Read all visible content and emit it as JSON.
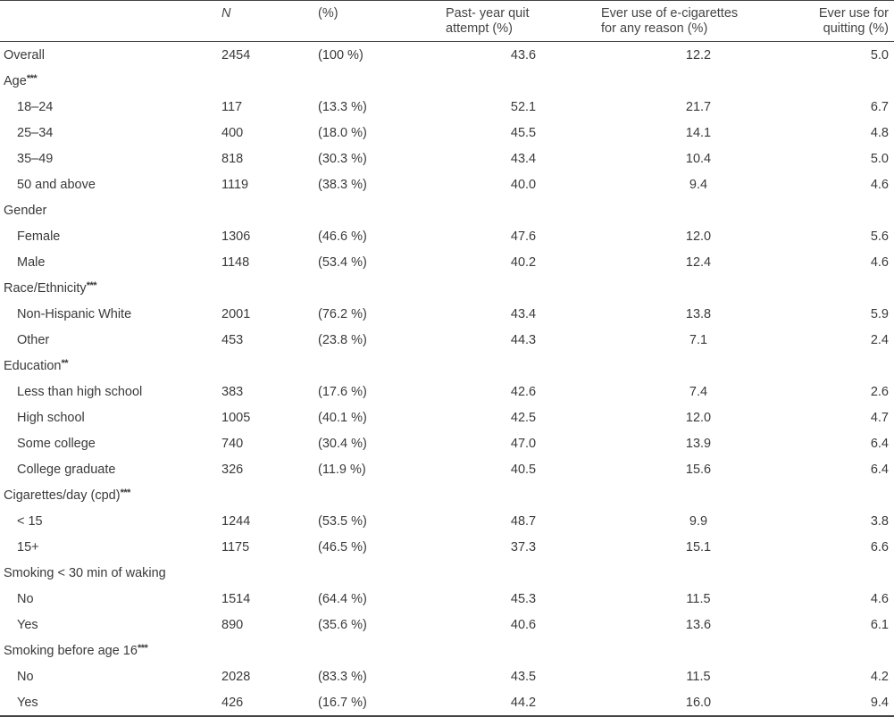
{
  "table": {
    "headers": [
      "",
      "N",
      "(%)",
      [
        "Past- year quit",
        "attempt (%)"
      ],
      [
        "Ever use of e-cigarettes",
        "for any reason (%)"
      ],
      [
        "Ever use for",
        "quitting (%)"
      ]
    ],
    "rows": [
      {
        "label": "Overall",
        "marker": "",
        "indent": false,
        "n": "2454",
        "pct": "(100 %)",
        "quit": "43.6",
        "ever": "12.2",
        "quitting": "5.0"
      },
      {
        "label": "Age",
        "marker": "***",
        "indent": false,
        "n": "",
        "pct": "",
        "quit": "",
        "ever": "",
        "quitting": ""
      },
      {
        "label": "18–24",
        "marker": "",
        "indent": true,
        "n": "117",
        "pct": "(13.3 %)",
        "quit": "52.1",
        "ever": "21.7",
        "quitting": "6.7"
      },
      {
        "label": "25–34",
        "marker": "",
        "indent": true,
        "n": "400",
        "pct": "(18.0 %)",
        "quit": "45.5",
        "ever": "14.1",
        "quitting": "4.8"
      },
      {
        "label": "35–49",
        "marker": "",
        "indent": true,
        "n": "818",
        "pct": "(30.3 %)",
        "quit": "43.4",
        "ever": "10.4",
        "quitting": "5.0"
      },
      {
        "label": "50 and above",
        "marker": "",
        "indent": true,
        "n": "1119",
        "pct": "(38.3 %)",
        "quit": "40.0",
        "ever": "9.4",
        "quitting": "4.6"
      },
      {
        "label": "Gender",
        "marker": "",
        "indent": false,
        "n": "",
        "pct": "",
        "quit": "",
        "ever": "",
        "quitting": ""
      },
      {
        "label": "Female",
        "marker": "",
        "indent": true,
        "n": "1306",
        "pct": "(46.6 %)",
        "quit": "47.6",
        "ever": "12.0",
        "quitting": "5.6"
      },
      {
        "label": "Male",
        "marker": "",
        "indent": true,
        "n": "1148",
        "pct": "(53.4 %)",
        "quit": "40.2",
        "ever": "12.4",
        "quitting": "4.6"
      },
      {
        "label": "Race/Ethnicity",
        "marker": "***",
        "indent": false,
        "n": "",
        "pct": "",
        "quit": "",
        "ever": "",
        "quitting": ""
      },
      {
        "label": "Non-Hispanic White",
        "marker": "",
        "indent": true,
        "n": "2001",
        "pct": "(76.2 %)",
        "quit": "43.4",
        "ever": "13.8",
        "quitting": "5.9"
      },
      {
        "label": "Other",
        "marker": "",
        "indent": true,
        "n": "453",
        "pct": "(23.8 %)",
        "quit": "44.3",
        "ever": "7.1",
        "quitting": "2.4"
      },
      {
        "label": "Education",
        "marker": "**",
        "indent": false,
        "n": "",
        "pct": "",
        "quit": "",
        "ever": "",
        "quitting": ""
      },
      {
        "label": "Less than high school",
        "marker": "",
        "indent": true,
        "n": "383",
        "pct": "(17.6 %)",
        "quit": "42.6",
        "ever": "7.4",
        "quitting": "2.6"
      },
      {
        "label": "High school",
        "marker": "",
        "indent": true,
        "n": "1005",
        "pct": "(40.1 %)",
        "quit": "42.5",
        "ever": "12.0",
        "quitting": "4.7"
      },
      {
        "label": "Some college",
        "marker": "",
        "indent": true,
        "n": "740",
        "pct": "(30.4 %)",
        "quit": "47.0",
        "ever": "13.9",
        "quitting": "6.4"
      },
      {
        "label": "College graduate",
        "marker": "",
        "indent": true,
        "n": "326",
        "pct": "(11.9 %)",
        "quit": "40.5",
        "ever": "15.6",
        "quitting": "6.4"
      },
      {
        "label": "Cigarettes/day (cpd)",
        "marker": "***",
        "indent": false,
        "n": "",
        "pct": "",
        "quit": "",
        "ever": "",
        "quitting": ""
      },
      {
        "label": "< 15",
        "marker": "",
        "indent": true,
        "n": "1244",
        "pct": "(53.5 %)",
        "quit": "48.7",
        "ever": "9.9",
        "quitting": "3.8"
      },
      {
        "label": "15+",
        "marker": "",
        "indent": true,
        "n": "1175",
        "pct": "(46.5 %)",
        "quit": "37.3",
        "ever": "15.1",
        "quitting": "6.6"
      },
      {
        "label": "Smoking < 30 min of waking",
        "marker": "",
        "indent": false,
        "n": "",
        "pct": "",
        "quit": "",
        "ever": "",
        "quitting": ""
      },
      {
        "label": "No",
        "marker": "",
        "indent": true,
        "n": "1514",
        "pct": "(64.4 %)",
        "quit": "45.3",
        "ever": "11.5",
        "quitting": "4.6"
      },
      {
        "label": "Yes",
        "marker": "",
        "indent": true,
        "n": "890",
        "pct": "(35.6 %)",
        "quit": "40.6",
        "ever": "13.6",
        "quitting": "6.1"
      },
      {
        "label": "Smoking before age 16",
        "marker": "***",
        "indent": false,
        "n": "",
        "pct": "",
        "quit": "",
        "ever": "",
        "quitting": ""
      },
      {
        "label": "No",
        "marker": "",
        "indent": true,
        "n": "2028",
        "pct": "(83.3 %)",
        "quit": "43.5",
        "ever": "11.5",
        "quitting": "4.2"
      },
      {
        "label": "Yes",
        "marker": "",
        "indent": true,
        "n": "426",
        "pct": "(16.7 %)",
        "quit": "44.2",
        "ever": "16.0",
        "quitting": "9.4"
      }
    ]
  }
}
